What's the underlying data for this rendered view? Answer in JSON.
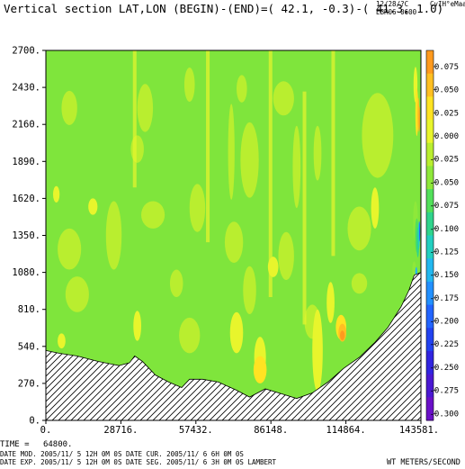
{
  "header": {
    "title": "Vertical section LAT,LON (BEGIN)-(END)=( 42.1,  -0.3)-( 41.3,   1.0)",
    "stamp_line1": "12/28/?C",
    "stamp_line2": "EBR06 0600",
    "stamp_user": "CvIH°eMaa"
  },
  "footer": {
    "time_label": "TIME =",
    "time_value": "64800.",
    "line2": "DATE MOD. 2005/11/ 5  12H 0M 0S   DATE CUR. 2005/11/ 6   6H 0M 0S",
    "line3": "DATE EXP.  2005/11/ 5  12H 0M 0S   DATE SEG. 2005/11/ 6   3H 0M 0S   LAMBERT",
    "units": "WT METERS/SECOND"
  },
  "colors": {
    "background": "#ffffff",
    "terrain_fill": "#ffffff",
    "terrain_hatch": "#000000",
    "base": "#7fe53c"
  },
  "chart_data": {
    "type": "heatmap",
    "title": "Vertical section LAT,LON (BEGIN)-(END)=( 42.1,  -0.3)-( 41.3,   1.0)",
    "xlabel": "",
    "ylabel": "",
    "xlim": [
      0,
      143581
    ],
    "ylim": [
      0,
      2700
    ],
    "x_ticks": [
      "0.",
      "28716.",
      "57432.",
      "86148.",
      "114864.",
      "143581."
    ],
    "y_ticks": [
      "0.",
      "270.",
      "540.",
      "810.",
      "1080.",
      "1350.",
      "1620.",
      "1890.",
      "2160.",
      "2430.",
      "2700."
    ],
    "x_tick_values": [
      0,
      28716,
      57432,
      86148,
      114864,
      143581
    ],
    "y_tick_values": [
      0,
      270,
      540,
      810,
      1080,
      1350,
      1620,
      1890,
      2160,
      2430,
      2700
    ],
    "units": "WT METERS/SECOND",
    "colorbar": {
      "labels": [
        "0.075",
        "0.050",
        "0.025",
        "0.000",
        "-0.025",
        "-0.050",
        "-0.075",
        "-0.100",
        "-0.125",
        "-0.150",
        "-0.175",
        "-0.200",
        "-0.225",
        "-0.250",
        "-0.275",
        "-0.300"
      ],
      "levels": [
        0.075,
        0.05,
        0.025,
        0.0,
        -0.025,
        -0.05,
        -0.075,
        -0.1,
        -0.125,
        -0.15,
        -0.175,
        -0.2,
        -0.225,
        -0.25,
        -0.275,
        -0.3
      ],
      "colors": [
        "#ff9a1e",
        "#ffbf22",
        "#ffe322",
        "#e8f52c",
        "#b9ee2f",
        "#8ee83a",
        "#52e05a",
        "#2fd48c",
        "#22cfc0",
        "#22b7ef",
        "#2290ff",
        "#2264ff",
        "#2242f0",
        "#3124e0",
        "#4a18d2",
        "#6a10c8"
      ]
    },
    "terrain": {
      "x": [
        0,
        5000,
        12000,
        20000,
        28000,
        32000,
        34000,
        37000,
        42000,
        47000,
        52000,
        55000,
        60000,
        66000,
        73000,
        78000,
        84000,
        91000,
        96000,
        102000,
        108000,
        114000,
        120000,
        126000,
        131000,
        136000,
        139000,
        141000,
        143581
      ],
      "y": [
        510,
        490,
        470,
        430,
        400,
        420,
        470,
        430,
        330,
        280,
        240,
        300,
        300,
        280,
        220,
        170,
        230,
        190,
        160,
        200,
        280,
        380,
        460,
        570,
        680,
        830,
        950,
        1060,
        1080
      ]
    },
    "features": [
      {
        "kind": "low",
        "x": 9000,
        "y": 2280,
        "w": 6000,
        "h": 250,
        "level": -0.025
      },
      {
        "kind": "low",
        "x": 35000,
        "y": 1980,
        "w": 5000,
        "h": 200,
        "level": -0.025
      },
      {
        "kind": "low",
        "x": 38000,
        "y": 2280,
        "w": 6000,
        "h": 350,
        "level": -0.025
      },
      {
        "kind": "low",
        "x": 55000,
        "y": 2450,
        "w": 4000,
        "h": 250,
        "level": -0.025
      },
      {
        "kind": "low",
        "x": 71000,
        "y": 1960,
        "w": 2500,
        "h": 700,
        "level": -0.025
      },
      {
        "kind": "low",
        "x": 75000,
        "y": 2420,
        "w": 4000,
        "h": 200,
        "level": -0.025
      },
      {
        "kind": "low",
        "x": 78000,
        "y": 1900,
        "w": 7000,
        "h": 550,
        "level": -0.025
      },
      {
        "kind": "low",
        "x": 91000,
        "y": 2350,
        "w": 8000,
        "h": 250,
        "level": -0.025
      },
      {
        "kind": "low",
        "x": 96000,
        "y": 1850,
        "w": 3000,
        "h": 600,
        "level": -0.025
      },
      {
        "kind": "low",
        "x": 104000,
        "y": 1950,
        "w": 3000,
        "h": 400,
        "level": -0.025
      },
      {
        "kind": "low",
        "x": 127000,
        "y": 2080,
        "w": 12000,
        "h": 620,
        "level": -0.025
      },
      {
        "kind": "low",
        "x": 9000,
        "y": 1250,
        "w": 9000,
        "h": 300,
        "level": -0.025
      },
      {
        "kind": "low",
        "x": 26000,
        "y": 1350,
        "w": 6000,
        "h": 500,
        "level": -0.025
      },
      {
        "kind": "low",
        "x": 41000,
        "y": 1500,
        "w": 9000,
        "h": 200,
        "level": -0.025
      },
      {
        "kind": "low",
        "x": 58000,
        "y": 1550,
        "w": 6000,
        "h": 350,
        "level": -0.025
      },
      {
        "kind": "low",
        "x": 72000,
        "y": 1300,
        "w": 7000,
        "h": 300,
        "level": -0.025
      },
      {
        "kind": "low",
        "x": 78000,
        "y": 950,
        "w": 5000,
        "h": 350,
        "level": -0.025
      },
      {
        "kind": "low",
        "x": 92000,
        "y": 1200,
        "w": 6000,
        "h": 350,
        "level": -0.025
      },
      {
        "kind": "low",
        "x": 120000,
        "y": 1400,
        "w": 9000,
        "h": 320,
        "level": -0.025
      },
      {
        "kind": "low",
        "x": 12000,
        "y": 920,
        "w": 9000,
        "h": 260,
        "level": -0.025
      },
      {
        "kind": "low",
        "x": 50000,
        "y": 1000,
        "w": 5000,
        "h": 200,
        "level": -0.025
      },
      {
        "kind": "low",
        "x": 120000,
        "y": 1000,
        "w": 6000,
        "h": 150,
        "level": -0.025
      },
      {
        "kind": "low",
        "x": 55000,
        "y": 620,
        "w": 8000,
        "h": 260,
        "level": -0.025
      },
      {
        "kind": "low",
        "x": 102000,
        "y": 720,
        "w": 6000,
        "h": 250,
        "level": -0.025
      },
      {
        "kind": "high",
        "x": 82000,
        "y": 460,
        "w": 4500,
        "h": 300,
        "level": 0.0
      },
      {
        "kind": "high",
        "x": 104000,
        "y": 510,
        "w": 4000,
        "h": 600,
        "level": 0.0
      },
      {
        "kind": "high",
        "x": 109000,
        "y": 860,
        "w": 3000,
        "h": 300,
        "level": 0.0
      },
      {
        "kind": "high",
        "x": 126000,
        "y": 1550,
        "w": 3000,
        "h": 300,
        "level": 0.0
      },
      {
        "kind": "high",
        "x": 4000,
        "y": 1650,
        "w": 2500,
        "h": 120,
        "level": 0.0
      },
      {
        "kind": "high",
        "x": 18000,
        "y": 1560,
        "w": 3500,
        "h": 120,
        "level": 0.0
      },
      {
        "kind": "high",
        "x": 87000,
        "y": 1120,
        "w": 4000,
        "h": 150,
        "level": 0.0
      },
      {
        "kind": "high",
        "x": 73000,
        "y": 640,
        "w": 5000,
        "h": 300,
        "level": 0.0
      },
      {
        "kind": "high",
        "x": 35000,
        "y": 690,
        "w": 3000,
        "h": 220,
        "level": 0.0
      },
      {
        "kind": "high",
        "x": 6000,
        "y": 580,
        "w": 3000,
        "h": 110,
        "level": 0.0
      },
      {
        "kind": "high",
        "x": 82000,
        "y": 370,
        "w": 5000,
        "h": 200,
        "level": 0.025
      },
      {
        "kind": "high",
        "x": 113000,
        "y": 680,
        "w": 4000,
        "h": 180,
        "level": 0.025
      },
      {
        "kind": "high",
        "x": 113500,
        "y": 640,
        "w": 3000,
        "h": 130,
        "level": 0.05
      },
      {
        "kind": "high",
        "x": 113500,
        "y": 620,
        "w": 1800,
        "h": 70,
        "level": 0.075
      },
      {
        "kind": "high",
        "x": 141500,
        "y": 2450,
        "w": 1500,
        "h": 260,
        "level": 0.0
      },
      {
        "kind": "high",
        "x": 142000,
        "y": 2250,
        "w": 1100,
        "h": 350,
        "level": 0.025
      },
      {
        "kind": "high",
        "x": 142600,
        "y": 2230,
        "w": 700,
        "h": 250,
        "level": 0.05
      },
      {
        "kind": "high",
        "x": 143000,
        "y": 2200,
        "w": 400,
        "h": 180,
        "level": 0.075
      },
      {
        "kind": "low",
        "x": 141500,
        "y": 1450,
        "w": 1800,
        "h": 300,
        "level": -0.05
      },
      {
        "kind": "low",
        "x": 142000,
        "y": 1350,
        "w": 1400,
        "h": 250,
        "level": -0.075
      },
      {
        "kind": "low",
        "x": 142400,
        "y": 1300,
        "w": 1000,
        "h": 220,
        "level": -0.1
      },
      {
        "kind": "low",
        "x": 142800,
        "y": 1350,
        "w": 700,
        "h": 200,
        "level": -0.125
      },
      {
        "kind": "low",
        "x": 143100,
        "y": 1380,
        "w": 400,
        "h": 150,
        "level": -0.2
      },
      {
        "kind": "low",
        "x": 141000,
        "y": 1100,
        "w": 1500,
        "h": 120,
        "level": -0.05
      },
      {
        "kind": "low",
        "x": 141800,
        "y": 1080,
        "w": 800,
        "h": 80,
        "level": -0.15
      }
    ]
  }
}
